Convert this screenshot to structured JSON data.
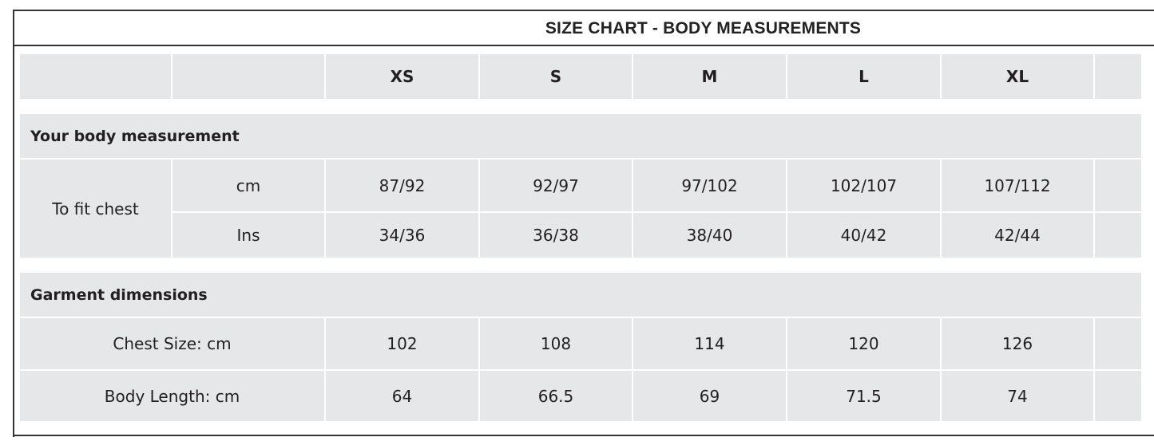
{
  "title": "SIZE CHART - BODY MEASUREMENTS",
  "table": {
    "columns": [
      "XS",
      "S",
      "M",
      "L",
      "XL"
    ],
    "sections": [
      {
        "heading": "Your body measurement",
        "label": "To fit chest",
        "rows": [
          {
            "unit": "cm",
            "cells": [
              "87/92",
              "92/97",
              "97/102",
              "102/107",
              "107/112"
            ]
          },
          {
            "unit": "Ins",
            "cells": [
              "34/36",
              "36/38",
              "38/40",
              "40/42",
              "42/44"
            ]
          }
        ]
      },
      {
        "heading": "Garment dimensions",
        "rows": [
          {
            "label": "Chest Size: cm",
            "cells": [
              "102",
              "108",
              "114",
              "120",
              "126"
            ]
          },
          {
            "label": "Body Length: cm",
            "cells": [
              "64",
              "66.5",
              "69",
              "71.5",
              "74"
            ]
          }
        ]
      }
    ]
  }
}
